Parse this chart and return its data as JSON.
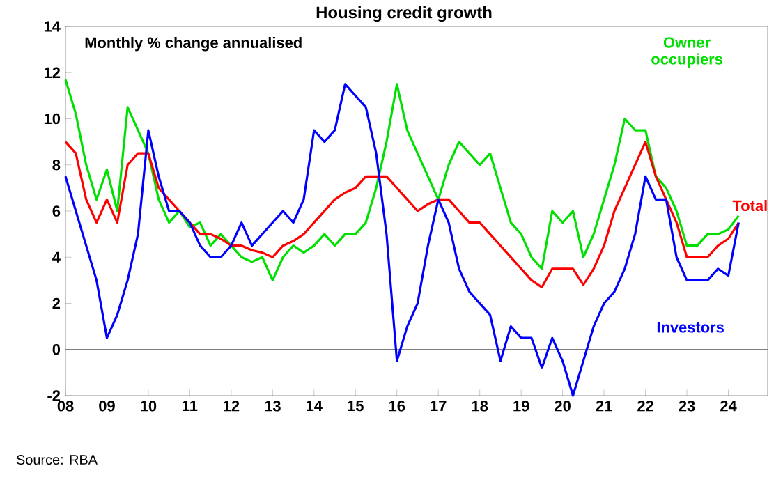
{
  "chart_data": {
    "type": "line",
    "title": "Housing credit growth",
    "subtitle": "Monthly % change annualised",
    "annotations": [
      "Source: RBA"
    ],
    "xlim": [
      2008,
      2024.95
    ],
    "ylim": [
      -2,
      14
    ],
    "yticks": [
      -2,
      0,
      2,
      4,
      6,
      8,
      10,
      12,
      14
    ],
    "xticks": [
      {
        "value": 2008,
        "label": "08"
      },
      {
        "value": 2009,
        "label": "09"
      },
      {
        "value": 2010,
        "label": "10"
      },
      {
        "value": 2011,
        "label": "11"
      },
      {
        "value": 2012,
        "label": "12"
      },
      {
        "value": 2013,
        "label": "13"
      },
      {
        "value": 2014,
        "label": "14"
      },
      {
        "value": 2015,
        "label": "15"
      },
      {
        "value": 2016,
        "label": "16"
      },
      {
        "value": 2017,
        "label": "17"
      },
      {
        "value": 2018,
        "label": "18"
      },
      {
        "value": 2019,
        "label": "19"
      },
      {
        "value": 2020,
        "label": "20"
      },
      {
        "value": 2021,
        "label": "21"
      },
      {
        "value": 2022,
        "label": "22"
      },
      {
        "value": 2023,
        "label": "23"
      },
      {
        "value": 2024,
        "label": "24"
      }
    ],
    "grid": false,
    "legend": false,
    "marker": "none",
    "line_style": "solid",
    "ref_lines": [
      {
        "axis": "y",
        "value": 0,
        "color": "#808080"
      }
    ],
    "x": [
      2008.0,
      2008.25,
      2008.5,
      2008.75,
      2009.0,
      2009.25,
      2009.5,
      2009.75,
      2010.0,
      2010.25,
      2010.5,
      2010.75,
      2011.0,
      2011.25,
      2011.5,
      2011.75,
      2012.0,
      2012.25,
      2012.5,
      2012.75,
      2013.0,
      2013.25,
      2013.5,
      2013.75,
      2014.0,
      2014.25,
      2014.5,
      2014.75,
      2015.0,
      2015.25,
      2015.5,
      2015.75,
      2016.0,
      2016.25,
      2016.5,
      2016.75,
      2017.0,
      2017.25,
      2017.5,
      2017.75,
      2018.0,
      2018.25,
      2018.5,
      2018.75,
      2019.0,
      2019.25,
      2019.5,
      2019.75,
      2020.0,
      2020.25,
      2020.5,
      2020.75,
      2021.0,
      2021.25,
      2021.5,
      2021.75,
      2022.0,
      2022.25,
      2022.5,
      2022.75,
      2023.0,
      2023.25,
      2023.5,
      2023.75,
      2024.0,
      2024.25
    ],
    "series": [
      {
        "name": "Owner occupiers",
        "color": "#00e000",
        "values": [
          11.7,
          10.2,
          8.0,
          6.5,
          7.8,
          6.0,
          10.5,
          9.5,
          8.5,
          6.5,
          5.5,
          6.0,
          5.3,
          5.5,
          4.5,
          5.0,
          4.5,
          4.0,
          3.8,
          4.0,
          3.0,
          4.0,
          4.5,
          4.2,
          4.5,
          5.0,
          4.5,
          5.0,
          5.0,
          5.5,
          7.0,
          9.0,
          11.5,
          9.5,
          8.5,
          7.5,
          6.5,
          8.0,
          9.0,
          8.5,
          8.0,
          8.5,
          7.0,
          5.5,
          5.0,
          4.0,
          3.5,
          6.0,
          5.5,
          6.0,
          4.0,
          5.0,
          6.5,
          8.0,
          10.0,
          9.5,
          9.5,
          7.5,
          7.0,
          6.0,
          4.5,
          4.5,
          5.0,
          5.0,
          5.2,
          5.8
        ]
      },
      {
        "name": "Total",
        "color": "#ff0000",
        "values": [
          9.0,
          8.5,
          6.5,
          5.5,
          6.5,
          5.5,
          8.0,
          8.5,
          8.5,
          7.0,
          6.5,
          6.0,
          5.5,
          5.0,
          5.0,
          4.8,
          4.5,
          4.5,
          4.3,
          4.2,
          4.0,
          4.5,
          4.7,
          5.0,
          5.5,
          6.0,
          6.5,
          6.8,
          7.0,
          7.5,
          7.5,
          7.5,
          7.0,
          6.5,
          6.0,
          6.3,
          6.5,
          6.5,
          6.0,
          5.5,
          5.5,
          5.0,
          4.5,
          4.0,
          3.5,
          3.0,
          2.7,
          3.5,
          3.5,
          3.5,
          2.8,
          3.5,
          4.5,
          6.0,
          7.0,
          8.0,
          9.0,
          7.5,
          6.5,
          5.5,
          4.0,
          4.0,
          4.0,
          4.5,
          4.8,
          5.5
        ]
      },
      {
        "name": "Investors",
        "color": "#0000ff",
        "values": [
          7.5,
          6.0,
          4.5,
          3.0,
          0.5,
          1.5,
          3.0,
          5.0,
          9.5,
          7.5,
          6.0,
          6.0,
          5.5,
          4.5,
          4.0,
          4.0,
          4.5,
          5.5,
          4.5,
          5.0,
          5.5,
          6.0,
          5.5,
          6.5,
          9.5,
          9.0,
          9.5,
          11.5,
          11.0,
          10.5,
          8.5,
          5.0,
          -0.5,
          1.0,
          2.0,
          4.5,
          6.5,
          5.5,
          3.5,
          2.5,
          2.0,
          1.5,
          -0.5,
          1.0,
          0.5,
          0.5,
          -0.8,
          0.5,
          -0.5,
          -2.0,
          -0.5,
          1.0,
          2.0,
          2.5,
          3.5,
          5.0,
          7.5,
          6.5,
          6.5,
          4.0,
          3.0,
          3.0,
          3.0,
          3.5,
          3.2,
          5.5
        ]
      }
    ]
  }
}
